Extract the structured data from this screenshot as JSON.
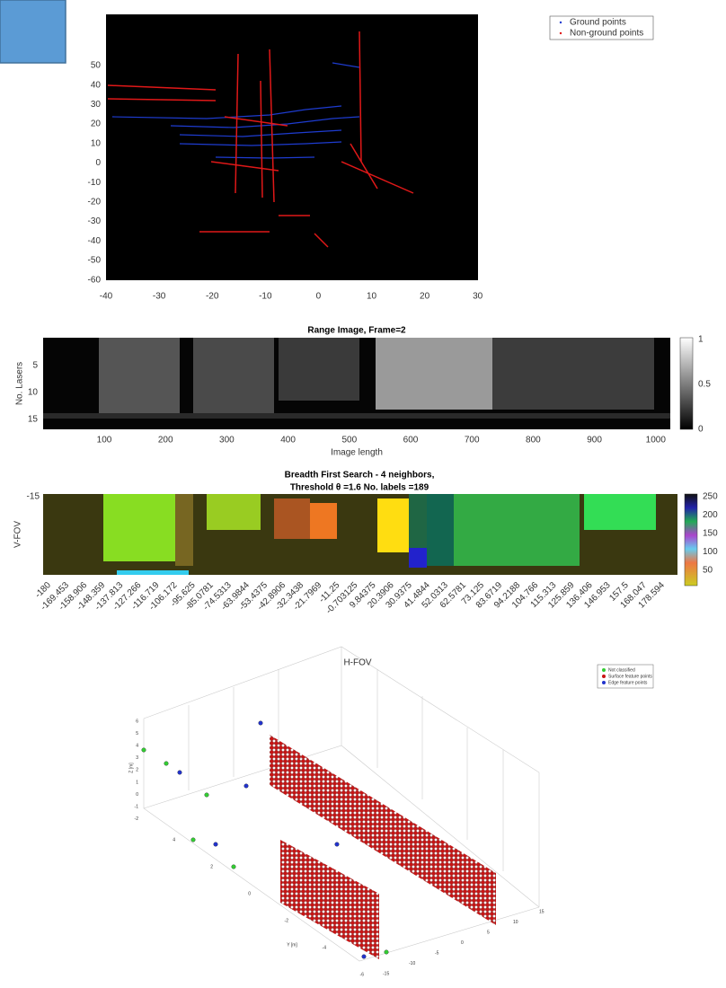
{
  "figure1": {
    "yticks": [
      "50",
      "40",
      "30",
      "20",
      "10",
      "0",
      "-10",
      "-20",
      "-30",
      "-40",
      "-50",
      "-60"
    ],
    "xticks": [
      "-40",
      "-30",
      "-20",
      "-10",
      "0",
      "10",
      "20",
      "30"
    ],
    "legend": [
      "Ground points",
      "Non-ground points"
    ]
  },
  "figure2": {
    "title": "Range Image, Frame=2",
    "ylabel": "No. Lasers",
    "xlabel": "Image length",
    "yticks": [
      "5",
      "10",
      "15"
    ],
    "xticks": [
      "100",
      "200",
      "300",
      "400",
      "500",
      "600",
      "700",
      "800",
      "900",
      "1000"
    ],
    "colorbar_ticks": [
      "1",
      "0.5",
      "0"
    ]
  },
  "figure3": {
    "title": [
      "Breadth First Search - 4 neighbors,",
      "Threshold θ =1.6 No. labels =189"
    ],
    "ylabel": "V-FOV",
    "xlabel": "H-FOV",
    "yticks": [
      "-15"
    ],
    "xticks": [
      "-180",
      "-169.453",
      "-158.906",
      "-148.359",
      "-137.813",
      "-127.266",
      "-116.719",
      "-106.172",
      "-95.625",
      "-85.0781",
      "-74.5313",
      "-63.9844",
      "-53.4375",
      "-42.8906",
      "-32.3438",
      "-21.7969",
      "-11.25",
      "-0.703125",
      "9.84375",
      "20.3906",
      "30.9375",
      "41.4844",
      "52.0313",
      "62.5781",
      "73.125",
      "83.6719",
      "94.2188",
      "104.766",
      "115.313",
      "125.859",
      "136.406",
      "146.953",
      "157.5",
      "168.047",
      "178.594"
    ],
    "colorbar_ticks": [
      "250",
      "200",
      "150",
      "100",
      "50"
    ]
  },
  "figure4": {
    "legend": [
      "Not classified",
      "Surface feature points",
      "Edge feature points"
    ],
    "zlabel": "Z [m]",
    "ylabel": "Y [m]",
    "zticks": [
      "6",
      "5",
      "4",
      "3",
      "2",
      "1",
      "0",
      "-1",
      "-2"
    ],
    "yticks": [
      "4",
      "2",
      "0",
      "-2",
      "-4",
      "-6"
    ],
    "xticks": [
      "15",
      "10",
      "5",
      "0",
      "-5",
      "-10",
      "-15"
    ]
  }
}
